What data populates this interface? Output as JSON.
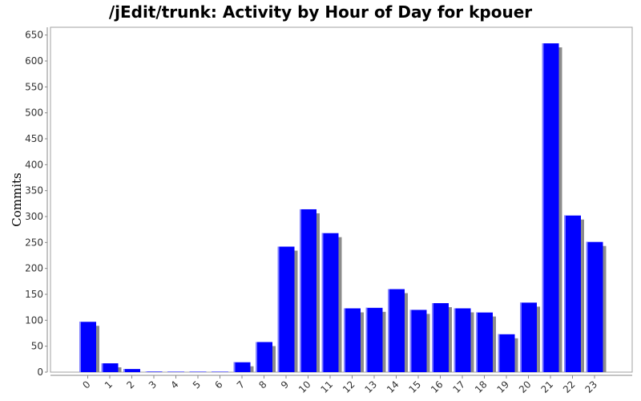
{
  "chart_data": {
    "type": "bar",
    "title": "/jEdit/trunk: Activity by Hour of Day for kpouer",
    "xlabel": "",
    "ylabel": "Commits",
    "categories": [
      "0",
      "1",
      "2",
      "3",
      "4",
      "5",
      "6",
      "7",
      "8",
      "9",
      "10",
      "11",
      "12",
      "13",
      "14",
      "15",
      "16",
      "17",
      "18",
      "19",
      "20",
      "21",
      "22",
      "23"
    ],
    "values": [
      97,
      17,
      6,
      1,
      0,
      0,
      0,
      19,
      58,
      242,
      314,
      268,
      123,
      124,
      160,
      120,
      133,
      123,
      115,
      73,
      134,
      634,
      302,
      251
    ],
    "y_ticks": [
      "0",
      "50",
      "100",
      "150",
      "200",
      "250",
      "300",
      "350",
      "400",
      "450",
      "500",
      "550",
      "600",
      "650"
    ],
    "ylim": [
      0,
      665
    ],
    "grid": false,
    "colors": {
      "bar": "#0000ff",
      "bar_highlight": "#8080ff",
      "bar_shadow": "#8c8c8c",
      "axis": "#888888"
    }
  }
}
